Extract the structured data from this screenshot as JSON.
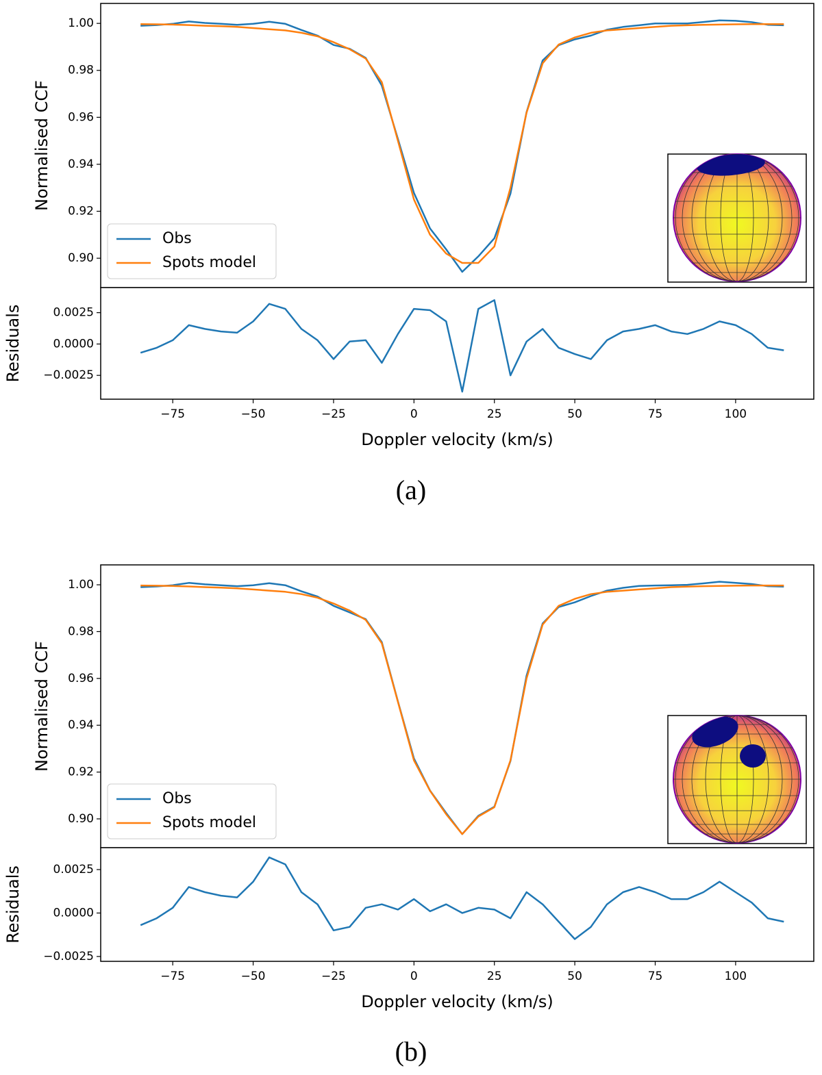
{
  "chart_data": [
    {
      "type": "line",
      "ylabel": "Normalised CCF",
      "legend": "lower left",
      "x": [
        -85,
        -80,
        -75,
        -70,
        -65,
        -60,
        -55,
        -50,
        -45,
        -40,
        -35,
        -30,
        -25,
        -20,
        -15,
        -10,
        -5,
        0,
        5,
        10,
        15,
        20,
        25,
        30,
        35,
        40,
        45,
        50,
        55,
        60,
        65,
        70,
        75,
        80,
        85,
        90,
        95,
        100,
        105,
        110,
        115
      ],
      "series": [
        {
          "name": "Obs",
          "color": "#1f77b4",
          "values": [
            0.999,
            0.9993,
            0.9998,
            1.0008,
            1.0002,
            0.9998,
            0.9994,
            0.9998,
            1.0007,
            0.9998,
            0.9972,
            0.9948,
            0.9908,
            0.9892,
            0.9853,
            0.9735,
            0.9508,
            0.9278,
            0.9127,
            0.9038,
            0.8942,
            0.9008,
            0.9085,
            0.9275,
            0.9622,
            0.9842,
            0.9907,
            0.9932,
            0.9948,
            0.9973,
            0.9985,
            0.9992,
            1.0,
            1.0,
            1.0,
            1.0006,
            1.0013,
            1.0011,
            1.0005,
            0.9994,
            0.9992
          ]
        },
        {
          "name": "Spots model",
          "color": "#ff7f0e",
          "values": [
            0.9997,
            0.9996,
            0.9995,
            0.9993,
            0.999,
            0.9988,
            0.9985,
            0.998,
            0.9975,
            0.997,
            0.996,
            0.9945,
            0.992,
            0.989,
            0.985,
            0.975,
            0.95,
            0.925,
            0.91,
            0.902,
            0.898,
            0.898,
            0.905,
            0.93,
            0.962,
            0.983,
            0.991,
            0.994,
            0.996,
            0.997,
            0.9975,
            0.998,
            0.9985,
            0.999,
            0.9992,
            0.9994,
            0.9995,
            0.9996,
            0.9997,
            0.9997,
            0.9997
          ]
        }
      ],
      "xlim": [
        -97.4,
        124.3
      ],
      "ylim": [
        0.8875,
        1.0085
      ],
      "yticks": [
        {
          "value": 0.9,
          "label": "0.90"
        },
        {
          "value": 0.92,
          "label": "0.92"
        },
        {
          "value": 0.94,
          "label": "0.94"
        },
        {
          "value": 0.96,
          "label": "0.96"
        },
        {
          "value": 0.98,
          "label": "0.98"
        },
        {
          "value": 1.0,
          "label": "1.00"
        }
      ]
    },
    {
      "type": "line",
      "ylabel": "Residuals",
      "xlabel": "Doppler velocity (km/s)",
      "x": [
        -85,
        -80,
        -75,
        -70,
        -65,
        -60,
        -55,
        -50,
        -45,
        -40,
        -35,
        -30,
        -25,
        -20,
        -15,
        -10,
        -5,
        0,
        5,
        10,
        15,
        20,
        25,
        30,
        35,
        40,
        45,
        50,
        55,
        60,
        65,
        70,
        75,
        80,
        85,
        90,
        95,
        100,
        105,
        110,
        115
      ],
      "series": [
        {
          "color": "#1f77b4",
          "values": [
            -0.0007,
            -0.0003,
            0.0003,
            0.0015,
            0.0012,
            0.001,
            0.0009,
            0.0018,
            0.0032,
            0.0028,
            0.0012,
            0.0003,
            -0.0012,
            0.0002,
            0.0003,
            -0.0015,
            0.0008,
            0.0028,
            0.0027,
            0.0018,
            -0.0038,
            0.0028,
            0.0035,
            -0.0025,
            0.0002,
            0.0012,
            -0.0003,
            -0.0008,
            -0.0012,
            0.0003,
            0.001,
            0.0012,
            0.0015,
            0.001,
            0.0008,
            0.0012,
            0.0018,
            0.0015,
            0.0008,
            -0.0003,
            -0.0005
          ]
        }
      ],
      "xlim": [
        -97.4,
        124.3
      ],
      "ylim": [
        -0.0044,
        0.0045
      ],
      "xticks": [
        {
          "value": -75,
          "label": "−75"
        },
        {
          "value": -50,
          "label": "−50"
        },
        {
          "value": -25,
          "label": "−25"
        },
        0,
        25,
        50,
        75,
        100
      ],
      "yticks": [
        {
          "value": -0.0025,
          "label": "−0.0025"
        },
        {
          "value": 0,
          "label": "0.0000"
        },
        0.0025
      ]
    },
    {
      "type": "line",
      "ylabel": "Normalised CCF",
      "legend": "lower left",
      "x": [
        -85,
        -80,
        -75,
        -70,
        -65,
        -60,
        -55,
        -50,
        -45,
        -40,
        -35,
        -30,
        -25,
        -20,
        -15,
        -10,
        -5,
        0,
        5,
        10,
        15,
        20,
        25,
        30,
        35,
        40,
        45,
        50,
        55,
        60,
        65,
        70,
        75,
        80,
        85,
        90,
        95,
        100,
        105,
        110,
        115
      ],
      "series": [
        {
          "name": "Obs",
          "color": "#1f77b4",
          "values": [
            0.999,
            0.9993,
            0.9998,
            1.0008,
            1.0002,
            0.9998,
            0.9994,
            0.9998,
            1.0007,
            0.9998,
            0.9972,
            0.995,
            0.991,
            0.9882,
            0.9853,
            0.9755,
            0.9502,
            0.9258,
            0.9121,
            0.9025,
            0.8935,
            0.9013,
            0.9052,
            0.9247,
            0.9612,
            0.9835,
            0.9905,
            0.9925,
            0.9952,
            0.9975,
            0.9987,
            0.9995,
            0.9997,
            0.9998,
            1.0,
            1.0006,
            1.0013,
            1.0008,
            1.0003,
            0.9994,
            0.9992
          ]
        },
        {
          "name": "Spots model",
          "color": "#ff7f0e",
          "values": [
            0.9997,
            0.9996,
            0.9995,
            0.9993,
            0.999,
            0.9988,
            0.9985,
            0.998,
            0.9975,
            0.997,
            0.996,
            0.9945,
            0.992,
            0.989,
            0.985,
            0.975,
            0.95,
            0.925,
            0.912,
            0.902,
            0.8935,
            0.901,
            0.905,
            0.925,
            0.96,
            0.983,
            0.991,
            0.994,
            0.996,
            0.997,
            0.9975,
            0.998,
            0.9985,
            0.999,
            0.9992,
            0.9994,
            0.9995,
            0.9996,
            0.9997,
            0.9997,
            0.9997
          ]
        }
      ],
      "xlim": [
        -97.4,
        124.3
      ],
      "ylim": [
        0.8877,
        1.0085
      ],
      "yticks": [
        {
          "value": 0.9,
          "label": "0.90"
        },
        {
          "value": 0.92,
          "label": "0.92"
        },
        {
          "value": 0.94,
          "label": "0.94"
        },
        {
          "value": 0.96,
          "label": "0.96"
        },
        {
          "value": 0.98,
          "label": "0.98"
        },
        {
          "value": 1.0,
          "label": "1.00"
        }
      ]
    },
    {
      "type": "line",
      "ylabel": "Residuals",
      "xlabel": "Doppler velocity (km/s)",
      "x": [
        -85,
        -80,
        -75,
        -70,
        -65,
        -60,
        -55,
        -50,
        -45,
        -40,
        -35,
        -30,
        -25,
        -20,
        -15,
        -10,
        -5,
        0,
        5,
        10,
        15,
        20,
        25,
        30,
        35,
        40,
        45,
        50,
        55,
        60,
        65,
        70,
        75,
        80,
        85,
        90,
        95,
        100,
        105,
        110,
        115
      ],
      "series": [
        {
          "color": "#1f77b4",
          "values": [
            -0.0007,
            -0.0003,
            0.0003,
            0.0015,
            0.0012,
            0.001,
            0.0009,
            0.0018,
            0.0032,
            0.0028,
            0.0012,
            0.0005,
            -0.001,
            -0.0008,
            0.0003,
            0.0005,
            0.0002,
            0.0008,
            0.0001,
            0.0005,
            0.0,
            0.0003,
            0.0002,
            -0.0003,
            0.0012,
            0.0005,
            -0.0005,
            -0.0015,
            -0.0008,
            0.0005,
            0.0012,
            0.0015,
            0.0012,
            0.0008,
            0.0008,
            0.0012,
            0.0018,
            0.0012,
            0.0006,
            -0.0003,
            -0.0005
          ]
        }
      ],
      "xlim": [
        -97.4,
        124.3
      ],
      "ylim": [
        -0.00278,
        0.00376
      ],
      "xticks": [
        {
          "value": -75,
          "label": "−75"
        },
        {
          "value": -50,
          "label": "−50"
        },
        {
          "value": -25,
          "label": "−25"
        },
        0,
        25,
        50,
        75,
        100
      ],
      "yticks": [
        {
          "value": -0.0025,
          "label": "−0.0025"
        },
        {
          "value": 0,
          "label": "0.0000"
        },
        0.0025
      ]
    }
  ],
  "captions": [
    "(a)",
    "(b)"
  ]
}
